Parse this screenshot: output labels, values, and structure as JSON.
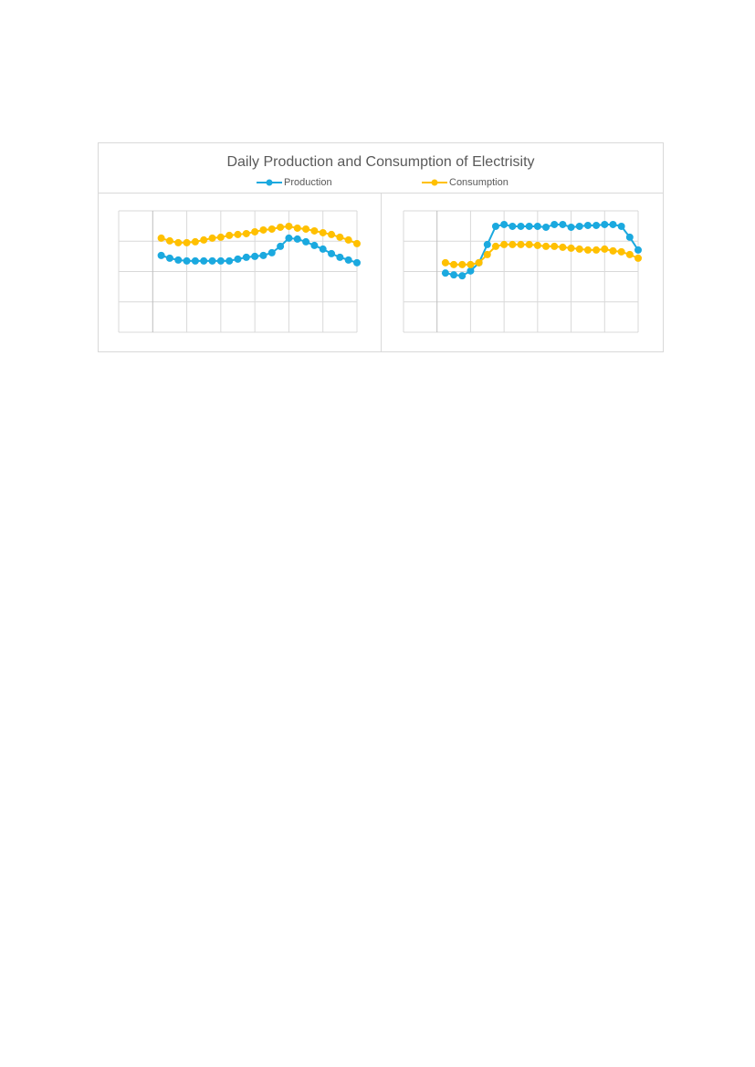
{
  "chart_data": [
    {
      "type": "line",
      "title": "Daily Production and Consumption of Electrisity",
      "x": [
        1,
        2,
        3,
        4,
        5,
        6,
        7,
        8,
        9,
        10,
        11,
        12,
        13,
        14,
        15,
        16,
        17,
        18,
        19,
        20,
        21,
        22,
        23,
        24
      ],
      "xlim": [
        -4,
        24
      ],
      "xticks": [
        -4,
        0,
        4,
        8,
        12,
        16,
        20,
        24
      ],
      "ylim": [
        0,
        4
      ],
      "yticks": [
        0,
        1,
        2,
        3,
        4
      ],
      "grid": true,
      "series": [
        {
          "name": "Production",
          "color": "#1ba9df",
          "values": [
            2.53,
            2.44,
            2.38,
            2.35,
            2.35,
            2.35,
            2.35,
            2.35,
            2.35,
            2.41,
            2.47,
            2.5,
            2.53,
            2.62,
            2.83,
            3.1,
            3.07,
            2.98,
            2.86,
            2.74,
            2.59,
            2.47,
            2.38,
            2.29
          ]
        },
        {
          "name": "Consumption",
          "color": "#ffc000",
          "values": [
            3.1,
            3.01,
            2.95,
            2.95,
            2.98,
            3.04,
            3.1,
            3.13,
            3.19,
            3.22,
            3.25,
            3.31,
            3.37,
            3.4,
            3.46,
            3.49,
            3.43,
            3.4,
            3.34,
            3.28,
            3.22,
            3.13,
            3.04,
            2.92
          ]
        }
      ]
    },
    {
      "type": "line",
      "x": [
        1,
        2,
        3,
        4,
        5,
        6,
        7,
        8,
        9,
        10,
        11,
        12,
        13,
        14,
        15,
        16,
        17,
        18,
        19,
        20,
        21,
        22,
        23,
        24
      ],
      "xlim": [
        -4,
        24
      ],
      "xticks": [
        -4,
        0,
        4,
        8,
        12,
        16,
        20,
        24
      ],
      "ylim": [
        0,
        4
      ],
      "yticks": [
        0,
        1,
        2,
        3,
        4
      ],
      "grid": true,
      "series": [
        {
          "color": "#1ba9df",
          "values": [
            1.95,
            1.89,
            1.86,
            2.02,
            2.29,
            2.89,
            3.49,
            3.55,
            3.49,
            3.49,
            3.49,
            3.49,
            3.46,
            3.55,
            3.55,
            3.46,
            3.49,
            3.52,
            3.52,
            3.55,
            3.55,
            3.49,
            3.13,
            2.71
          ]
        },
        {
          "color": "#ffc000",
          "values": [
            2.29,
            2.23,
            2.23,
            2.23,
            2.29,
            2.56,
            2.83,
            2.89,
            2.89,
            2.89,
            2.89,
            2.86,
            2.83,
            2.83,
            2.8,
            2.77,
            2.74,
            2.71,
            2.71,
            2.74,
            2.68,
            2.65,
            2.56,
            2.44
          ]
        }
      ]
    }
  ]
}
